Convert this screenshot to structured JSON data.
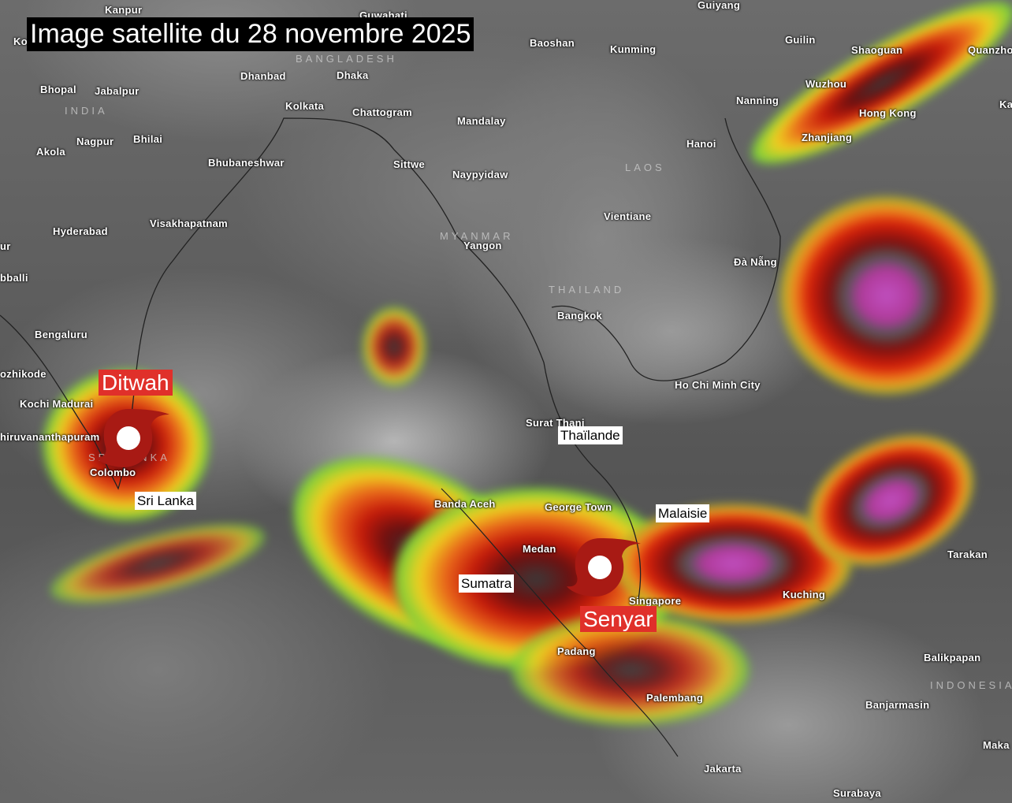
{
  "title": "Image satellite du 28 novembre 2025",
  "storms": [
    {
      "name": "Ditwah",
      "icon": "cyclone-icon",
      "color": "#e0302a"
    },
    {
      "name": "Senyar",
      "icon": "cyclone-icon",
      "color": "#e0302a"
    }
  ],
  "countries": [
    "Thaïlande",
    "Malaisie",
    "Sri Lanka",
    "Sumatra"
  ],
  "regions": [
    "BANGLADESH",
    "INDIA",
    "LAOS",
    "MYANMAR",
    "THAILAND",
    "INDONESIA",
    "SRI LANKA"
  ],
  "cities": [
    "Kanpur",
    "Guwahati",
    "Guiyang",
    "Baoshan",
    "Kunming",
    "Guilin",
    "Shaoguan",
    "Quanzhou",
    "Dhanbad",
    "Dhaka",
    "Bhopal",
    "Jabalpur",
    "Kolkata",
    "Chattogram",
    "Mandalay",
    "Wuzhou",
    "Nanning",
    "Hong Kong",
    "Zhanjiang",
    "Hanoi",
    "Nagpur",
    "Bhilai",
    "Akola",
    "Bhubaneshwar",
    "Sittwe",
    "Naypyidaw",
    "Vientiane",
    "Hyderabad",
    "Visakhapatnam",
    "Yangon",
    "Đà Nẵng",
    "Bangkok",
    "Bengaluru",
    "ozhikode",
    "Ho Chi Minh City",
    "Kochi Madurai",
    "hiruvananthapuram",
    "Surat Thani",
    "Colombo",
    "Banda Aceh",
    "George Town",
    "Medan",
    "Singapore",
    "Kuching",
    "Tarakan",
    "Padang",
    "Balikpapan",
    "Palembang",
    "Banjarmasin",
    "Jakarta",
    "Maka",
    "Surabaya",
    "Ko",
    "ur",
    "bballi",
    "Ka"
  ]
}
